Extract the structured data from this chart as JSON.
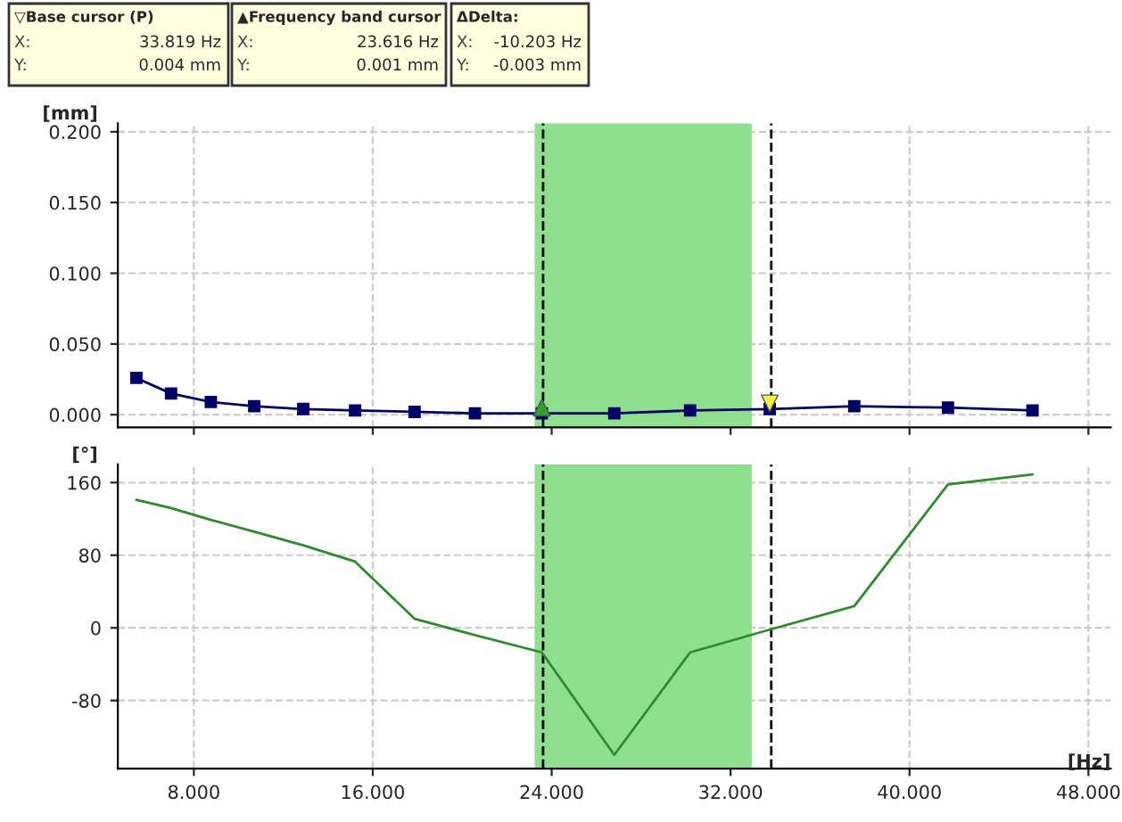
{
  "chart_data": [
    {
      "type": "line",
      "ylabel": "[mm]",
      "tick_labels": "y",
      "grid": true,
      "legend": false,
      "annotations": [
        "▽Base cursor (P)",
        "X:",
        "33.819 Hz",
        "Y:",
        "0.004 mm",
        "▲Frequency band cursor",
        "X:",
        "23.616 Hz",
        "Y:",
        "0.001 mm",
        "ΔDelta:",
        "X:",
        "-10.203 Hz",
        "Y:",
        "-0.003 mm"
      ],
      "xlim": [
        4.6,
        49
      ],
      "ylim": [
        -0.009,
        0.206
      ],
      "yticks": [
        {
          "value": 0,
          "label": "0.000"
        },
        {
          "value": 0.05,
          "label": "0.050"
        },
        {
          "value": 0.1,
          "label": "0.100"
        },
        {
          "value": 0.15,
          "label": "0.150"
        },
        {
          "value": 0.2,
          "label": "0.200"
        }
      ],
      "xticks": [
        {
          "value": 8,
          "label": null
        },
        {
          "value": 16,
          "label": null
        },
        {
          "value": 24,
          "label": null
        },
        {
          "value": 32,
          "label": null
        },
        {
          "value": 40,
          "label": null
        },
        {
          "value": 48,
          "label": null
        }
      ],
      "bands": [
        {
          "axis": "x",
          "from": 23.24,
          "to": 32.95,
          "color": "#8ee08e"
        }
      ],
      "ref_lines": [
        {
          "axis": "x",
          "value": 23.616,
          "color": "#000000",
          "line_style": "dashed"
        },
        {
          "axis": "x",
          "value": 33.819,
          "color": "#000000",
          "line_style": "dashed"
        }
      ],
      "series": [
        {
          "color": "#000066",
          "marker": "square",
          "x": [
            5.43,
            6.98,
            8.76,
            10.7,
            12.89,
            15.21,
            17.87,
            20.57,
            23.56,
            26.8,
            30.19,
            33.75,
            37.53,
            41.72,
            45.5
          ],
          "values": [
            0.026,
            0.015,
            0.009,
            0.006,
            0.004,
            0.003,
            0.002,
            0.001,
            0.001,
            0.001,
            0.003,
            0.004,
            0.006,
            0.005,
            0.003
          ]
        },
        {
          "type": "scatter",
          "color": "#2e9e2e",
          "marker": "triangle",
          "x": [
            23.56
          ],
          "values": [
            0.005
          ]
        },
        {
          "type": "scatter",
          "color": "#f5f03c",
          "marker": "triangle_down",
          "x": [
            33.75
          ],
          "values": [
            0.008
          ]
        }
      ]
    },
    {
      "type": "line",
      "ylabel": "[°]",
      "xlabel": "[Hz]",
      "grid": true,
      "legend": false,
      "xlim": [
        4.6,
        49
      ],
      "ylim": [
        -155,
        180
      ],
      "yticks": [
        -80,
        0,
        80,
        160
      ],
      "xticks": [
        {
          "value": 8,
          "label": "8.000"
        },
        {
          "value": 16,
          "label": "16.000"
        },
        {
          "value": 24,
          "label": "24.000"
        },
        {
          "value": 32,
          "label": "32.000"
        },
        {
          "value": 40,
          "label": "40.000"
        },
        {
          "value": 48,
          "label": "48.000"
        }
      ],
      "bands": [
        {
          "axis": "x",
          "from": 23.24,
          "to": 32.95,
          "color": "#8ee08e"
        }
      ],
      "ref_lines": [
        {
          "axis": "x",
          "value": 23.616,
          "color": "#000000",
          "line_style": "dashed"
        },
        {
          "axis": "x",
          "value": 33.819,
          "color": "#000000",
          "line_style": "dashed"
        }
      ],
      "series": [
        {
          "color": "#2e8b2e",
          "marker": "none",
          "x": [
            5.43,
            6.98,
            8.76,
            10.7,
            12.89,
            15.21,
            17.87,
            20.57,
            23.56,
            26.8,
            30.19,
            33.75,
            37.53,
            41.72,
            45.5
          ],
          "values": [
            141,
            132,
            119,
            106,
            91,
            73,
            10,
            -8,
            -27,
            -140,
            -27,
            -2,
            24,
            158,
            169
          ]
        }
      ]
    }
  ]
}
